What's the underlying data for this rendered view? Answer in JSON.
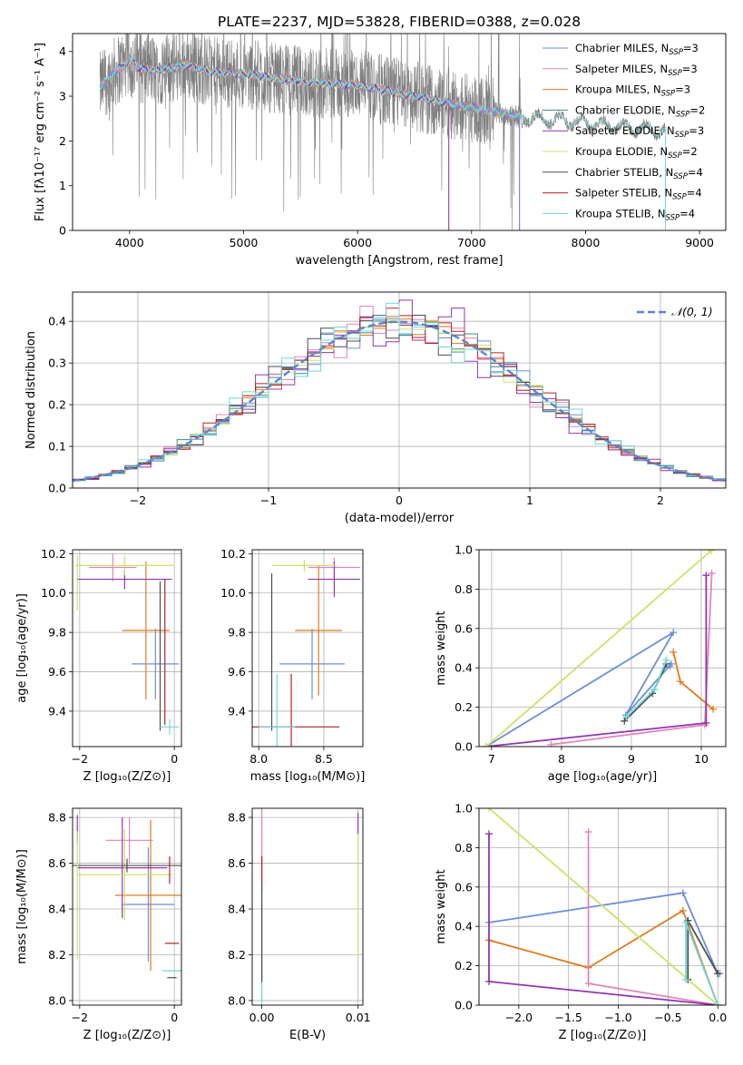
{
  "figure": {
    "title": "PLATE=2237, MJD=53828, FIBERID=0388, z=0.028"
  },
  "colors": {
    "Chabrier MILES": "#6a8fd8",
    "Salpeter MILES": "#e383bd",
    "Kroupa MILES": "#e07b1f",
    "Chabrier ELODIE": "#3f8a86",
    "Salpeter ELODIE": "#9234b0",
    "Kroupa ELODIE": "#c9e36a",
    "Chabrier STELIB": "#4d4d4d",
    "Salpeter STELIB": "#b3202a",
    "Kroupa STELIB": "#71d6da",
    "data": "#808080",
    "gauss": "#5b84d6"
  },
  "chart_data": [
    {
      "id": "spectrum",
      "type": "line",
      "xlabel": "wavelength [Angstrom, rest frame]",
      "ylabel": "Flux [fλ10⁻¹⁷ erg cm⁻² s⁻¹ A⁻¹]",
      "xlim": [
        3500,
        9230
      ],
      "ylim": [
        0,
        4.4
      ],
      "xticks": [
        4000,
        5000,
        6000,
        7000,
        8000,
        9000
      ],
      "yticks": [
        0,
        1,
        2,
        3,
        4
      ],
      "legend": "upper right",
      "legend_entries": [
        {
          "name": "Chabrier MILES, N",
          "sub": "SSP",
          "tail": "=3"
        },
        {
          "name": "Salpeter MILES, N",
          "sub": "SSP",
          "tail": "=3"
        },
        {
          "name": "Kroupa MILES, N",
          "sub": "SSP",
          "tail": "=3"
        },
        {
          "name": "Chabrier ELODIE, N",
          "sub": "SSP",
          "tail": "=2"
        },
        {
          "name": "Salpeter ELODIE, N",
          "sub": "SSP",
          "tail": "=3"
        },
        {
          "name": "Kroupa ELODIE, N",
          "sub": "SSP",
          "tail": "=2"
        },
        {
          "name": "Chabrier STELIB, N",
          "sub": "SSP",
          "tail": "=4"
        },
        {
          "name": "Salpeter STELIB, N",
          "sub": "SSP",
          "tail": "=4"
        },
        {
          "name": "Kroupa STELIB, N",
          "sub": "SSP",
          "tail": "=4"
        }
      ],
      "continuum": [
        [
          3740,
          3.2
        ],
        [
          3850,
          3.5
        ],
        [
          4000,
          3.8
        ],
        [
          4100,
          3.6
        ],
        [
          4300,
          3.6
        ],
        [
          4500,
          3.7
        ],
        [
          4700,
          3.55
        ],
        [
          5000,
          3.5
        ],
        [
          5300,
          3.4
        ],
        [
          5600,
          3.3
        ],
        [
          6000,
          3.25
        ],
        [
          6300,
          3.1
        ],
        [
          6600,
          2.95
        ],
        [
          7000,
          2.75
        ],
        [
          7400,
          2.55
        ],
        [
          7800,
          2.45
        ],
        [
          8200,
          2.35
        ],
        [
          8600,
          2.25
        ],
        [
          8700,
          2.2
        ]
      ],
      "model_ranges": [
        {
          "name": "MILES",
          "x": [
            3740,
            7420
          ]
        },
        {
          "name": "ELODIE",
          "x": [
            3900,
            6800
          ]
        },
        {
          "name": "STELIB",
          "x": [
            3740,
            8700
          ]
        }
      ]
    },
    {
      "id": "residuals",
      "type": "histogram",
      "xlabel": "(data-model)/error",
      "ylabel": "Normed distribution",
      "xlim": [
        -2.5,
        2.5
      ],
      "ylim": [
        0,
        0.47
      ],
      "xticks": [
        -2,
        -1,
        0,
        1,
        2
      ],
      "yticks": [
        0,
        0.1,
        0.2,
        0.3,
        0.4
      ],
      "legend": "upper right",
      "gauss_label": "𝒩(0, 1)",
      "bin_width": 0.1,
      "bins": 50,
      "spread": [
        0.07,
        0.11,
        0.05,
        0.09,
        0.13,
        0.06,
        0.1,
        0.08,
        0.12
      ]
    },
    {
      "id": "age_vs_z",
      "type": "scatter",
      "errorbars": true,
      "xlabel": "Z [log₁₀(Z/Z⊙)]",
      "ylabel": "age  [log₁₀(age/yr)]",
      "xlim": [
        -2.15,
        0.15
      ],
      "ylim": [
        9.22,
        10.22
      ],
      "xticks": [
        -2,
        0
      ],
      "yticks": [
        9.4,
        9.6,
        9.8,
        10.0,
        10.2
      ],
      "points": [
        {
          "s": "Chabrier MILES",
          "x": -0.4,
          "y": 9.64,
          "ex": 0.5,
          "ey": 0.18
        },
        {
          "s": "Kroupa MILES",
          "x": -0.6,
          "y": 9.81,
          "ex": 0.5,
          "ey": 0.35
        },
        {
          "s": "Salpeter MILES",
          "x": -1.3,
          "y": 10.13,
          "ex": 0.5,
          "ey": 0.07
        },
        {
          "s": "Salpeter ELODIE",
          "x": -1.05,
          "y": 10.07,
          "ex": 1.0,
          "ey": 0.05
        },
        {
          "s": "Kroupa ELODIE",
          "x": -1.05,
          "y": 10.14,
          "ex": 1.05,
          "ey": 0.05
        },
        {
          "s": "Kroupa ELODIE",
          "x": -2.05,
          "y": 10.05,
          "ex": 0.0,
          "ey": 0.14
        },
        {
          "s": "Chabrier STELIB",
          "x": -0.3,
          "y": 9.68,
          "ex": 0.0,
          "ey": 0.38
        },
        {
          "s": "Kroupa STELIB",
          "x": -0.1,
          "y": 9.32,
          "ex": 0.2,
          "ey": 0.04
        },
        {
          "s": "Salpeter STELIB",
          "x": -0.2,
          "y": 9.7,
          "ex": 0.0,
          "ey": 0.37
        }
      ]
    },
    {
      "id": "age_vs_mass",
      "type": "scatter",
      "errorbars": true,
      "xlabel": "mass [log₁₀(M/M⊙)]",
      "ylabel": "",
      "xlim": [
        7.95,
        8.8
      ],
      "ylim": [
        9.22,
        10.22
      ],
      "xticks": [
        8.0,
        8.5
      ],
      "yticks": [
        9.4,
        9.6,
        9.8,
        10.0,
        10.2
      ],
      "points": [
        {
          "s": "Chabrier MILES",
          "x": 8.41,
          "y": 9.64,
          "ex": 0.25,
          "ey": 0.18
        },
        {
          "s": "Kroupa MILES",
          "x": 8.46,
          "y": 9.81,
          "ex": 0.18,
          "ey": 0.33
        },
        {
          "s": "Salpeter MILES",
          "x": 8.58,
          "y": 10.13,
          "ex": 0.2,
          "ey": 0.05
        },
        {
          "s": "Salpeter ELODIE",
          "x": 8.58,
          "y": 10.07,
          "ex": 0.2,
          "ey": 0.09
        },
        {
          "s": "Kroupa ELODIE",
          "x": 8.35,
          "y": 10.14,
          "ex": 0.25,
          "ey": 0.03
        },
        {
          "s": "Chabrier STELIB",
          "x": 8.1,
          "y": 9.7,
          "ex": 0.0,
          "ey": 0.4
        },
        {
          "s": "Salpeter STELIB",
          "x": 8.25,
          "y": 9.32,
          "ex": 0.37,
          "ey": 0.27
        },
        {
          "s": "Kroupa STELIB",
          "x": 8.14,
          "y": 9.32,
          "ex": 0.14,
          "ey": 0.27
        }
      ]
    },
    {
      "id": "weight_vs_age",
      "type": "line",
      "xlabel": "age  [log₁₀(age/yr)]",
      "ylabel": "mass weight",
      "xlim": [
        6.82,
        10.35
      ],
      "ylim": [
        0,
        1
      ],
      "xticks": [
        7,
        8,
        9,
        10
      ],
      "yticks": [
        0.0,
        0.2,
        0.4,
        0.6,
        0.8,
        1.0
      ],
      "series": [
        {
          "s": "Chabrier MILES",
          "pts": [
            [
              6.92,
              0.0
            ],
            [
              9.6,
              0.58
            ],
            [
              8.92,
              0.16
            ],
            [
              9.57,
              0.42
            ],
            [
              9.55,
              0.41
            ]
          ]
        },
        {
          "s": "Kroupa MILES",
          "pts": [
            [
              9.6,
              0.48
            ],
            [
              9.7,
              0.33
            ],
            [
              10.17,
              0.19
            ]
          ]
        },
        {
          "s": "Salpeter MILES",
          "pts": [
            [
              7.85,
              0.01
            ],
            [
              10.05,
              0.11
            ],
            [
              10.15,
              0.88
            ]
          ]
        },
        {
          "s": "Salpeter ELODIE",
          "pts": [
            [
              6.92,
              0.0
            ],
            [
              10.07,
              0.12
            ],
            [
              10.07,
              0.87
            ]
          ]
        },
        {
          "s": "Kroupa ELODIE",
          "pts": [
            [
              6.92,
              0.0
            ],
            [
              10.14,
              0.995
            ]
          ]
        },
        {
          "s": "Chabrier STELIB",
          "pts": [
            [
              8.9,
              0.13
            ],
            [
              9.3,
              0.27
            ],
            [
              9.5,
              0.42
            ]
          ]
        },
        {
          "s": "Kroupa STELIB",
          "pts": [
            [
              8.93,
              0.15
            ],
            [
              9.33,
              0.29
            ],
            [
              9.5,
              0.44
            ]
          ]
        }
      ]
    },
    {
      "id": "mass_vs_z",
      "type": "scatter",
      "errorbars": true,
      "xlabel": "Z [log₁₀(Z/Z⊙)]",
      "ylabel": "mass [log₁₀(M/M⊙)]",
      "xlim": [
        -2.15,
        0.15
      ],
      "ylim": [
        7.98,
        8.84
      ],
      "xticks": [
        -2,
        0
      ],
      "yticks": [
        8.0,
        8.2,
        8.4,
        8.6,
        8.8
      ],
      "points": [
        {
          "s": "Chabrier MILES",
          "x": -0.55,
          "y": 8.42,
          "ex": 0.55,
          "ey": 0.25
        },
        {
          "s": "Kroupa MILES",
          "x": -0.5,
          "y": 8.46,
          "ex": 0.75,
          "ey": 0.33
        },
        {
          "s": "Salpeter MILES",
          "x": -0.95,
          "y": 8.7,
          "ex": 0.5,
          "ey": 0.1
        },
        {
          "s": "Salpeter ELODIE",
          "x": -1.1,
          "y": 8.58,
          "ex": 0.95,
          "ey": 0.22
        },
        {
          "s": "Kroupa ELODIE",
          "x": -1.05,
          "y": 8.55,
          "ex": 1.0,
          "ey": 0.2
        },
        {
          "s": "Chabrier STELIB",
          "x": -1.0,
          "y": 8.59,
          "ex": 1.15,
          "ey": 0.03
        },
        {
          "s": "Salpeter STELIB",
          "x": -0.1,
          "y": 8.57,
          "ex": 0.0,
          "ey": 0.06
        },
        {
          "s": "Salpeter STELIB",
          "x": -0.05,
          "y": 8.25,
          "ex": 0.15,
          "ey": 0.0
        },
        {
          "s": "Chabrier STELIB",
          "x": -0.05,
          "y": 8.1,
          "ex": 0.1,
          "ey": 0.0
        },
        {
          "s": "Kroupa STELIB",
          "x": -0.05,
          "y": 8.13,
          "ex": 0.2,
          "ey": 0.0
        },
        {
          "s": "Salpeter ELODIE",
          "x": -2.05,
          "y": 8.75,
          "ex": 0.0,
          "ey": 0.06
        },
        {
          "s": "Kroupa ELODIE",
          "x": -2.05,
          "y": 8.46,
          "ex": 0.0,
          "ey": 0.28
        }
      ]
    },
    {
      "id": "mass_vs_ebv",
      "type": "scatter",
      "errorbars": true,
      "xlabel": "E(B-V)",
      "ylabel": "",
      "xlim": [
        -0.001,
        0.0105
      ],
      "ylim": [
        7.98,
        8.84
      ],
      "xticks": [
        0.0,
        0.01
      ],
      "yticks": [
        8.0,
        8.2,
        8.4,
        8.6,
        8.8
      ],
      "tick_labels_x": [
        "0.00",
        "0.01"
      ],
      "points": [
        {
          "s": "Salpeter MILES",
          "x": 0.0,
          "y": 8.68,
          "ex": 0.0,
          "ey": 0.16
        },
        {
          "s": "Salpeter STELIB",
          "x": 0.0,
          "y": 8.55,
          "ex": 0.0,
          "ey": 0.08
        },
        {
          "s": "Kroupa STELIB",
          "x": 0.0,
          "y": 8.2,
          "ex": 0.0,
          "ey": 0.23
        },
        {
          "s": "Chabrier STELIB",
          "x": 0.0,
          "y": 8.3,
          "ex": 0.0,
          "ey": 0.22
        },
        {
          "s": "Salpeter ELODIE",
          "x": 0.01,
          "y": 8.77,
          "ex": 0.0,
          "ey": 0.05
        },
        {
          "s": "Kroupa ELODIE",
          "x": 0.01,
          "y": 8.46,
          "ex": 0.0,
          "ey": 0.27
        }
      ]
    },
    {
      "id": "weight_vs_z",
      "type": "line",
      "xlabel": "Z [log₁₀(Z/Z⊙)]",
      "ylabel": "mass weight",
      "xlim": [
        -2.4,
        0.08
      ],
      "ylim": [
        0,
        1
      ],
      "xticks": [
        -2.0,
        -1.5,
        -1.0,
        -0.5,
        0.0
      ],
      "yticks": [
        0.0,
        0.2,
        0.4,
        0.6,
        0.8,
        1.0
      ],
      "series": [
        {
          "s": "Chabrier MILES",
          "pts": [
            [
              -2.3,
              0.42
            ],
            [
              -0.35,
              0.57
            ],
            [
              0.0,
              0.16
            ],
            [
              0.02,
              0.16
            ]
          ]
        },
        {
          "s": "Kroupa MILES",
          "pts": [
            [
              -2.3,
              0.33
            ],
            [
              -1.3,
              0.19
            ],
            [
              -0.35,
              0.48
            ],
            [
              0.0,
              0.0
            ]
          ]
        },
        {
          "s": "Salpeter MILES",
          "pts": [
            [
              -1.3,
              0.88
            ],
            [
              -1.3,
              0.11
            ],
            [
              0.0,
              0.0
            ]
          ]
        },
        {
          "s": "Salpeter ELODIE",
          "pts": [
            [
              -2.3,
              0.87
            ],
            [
              -2.3,
              0.12
            ],
            [
              0.0,
              0.0
            ]
          ]
        },
        {
          "s": "Kroupa ELODIE",
          "pts": [
            [
              -2.3,
              1.0
            ],
            [
              0.0,
              0.0
            ]
          ]
        },
        {
          "s": "Chabrier STELIB",
          "pts": [
            [
              -0.3,
              0.13
            ],
            [
              -0.3,
              0.43
            ],
            [
              0.0,
              0.16
            ]
          ]
        },
        {
          "s": "Kroupa STELIB",
          "pts": [
            [
              -0.32,
              0.13
            ],
            [
              -0.32,
              0.42
            ],
            [
              0.0,
              0.0
            ]
          ]
        }
      ]
    }
  ]
}
